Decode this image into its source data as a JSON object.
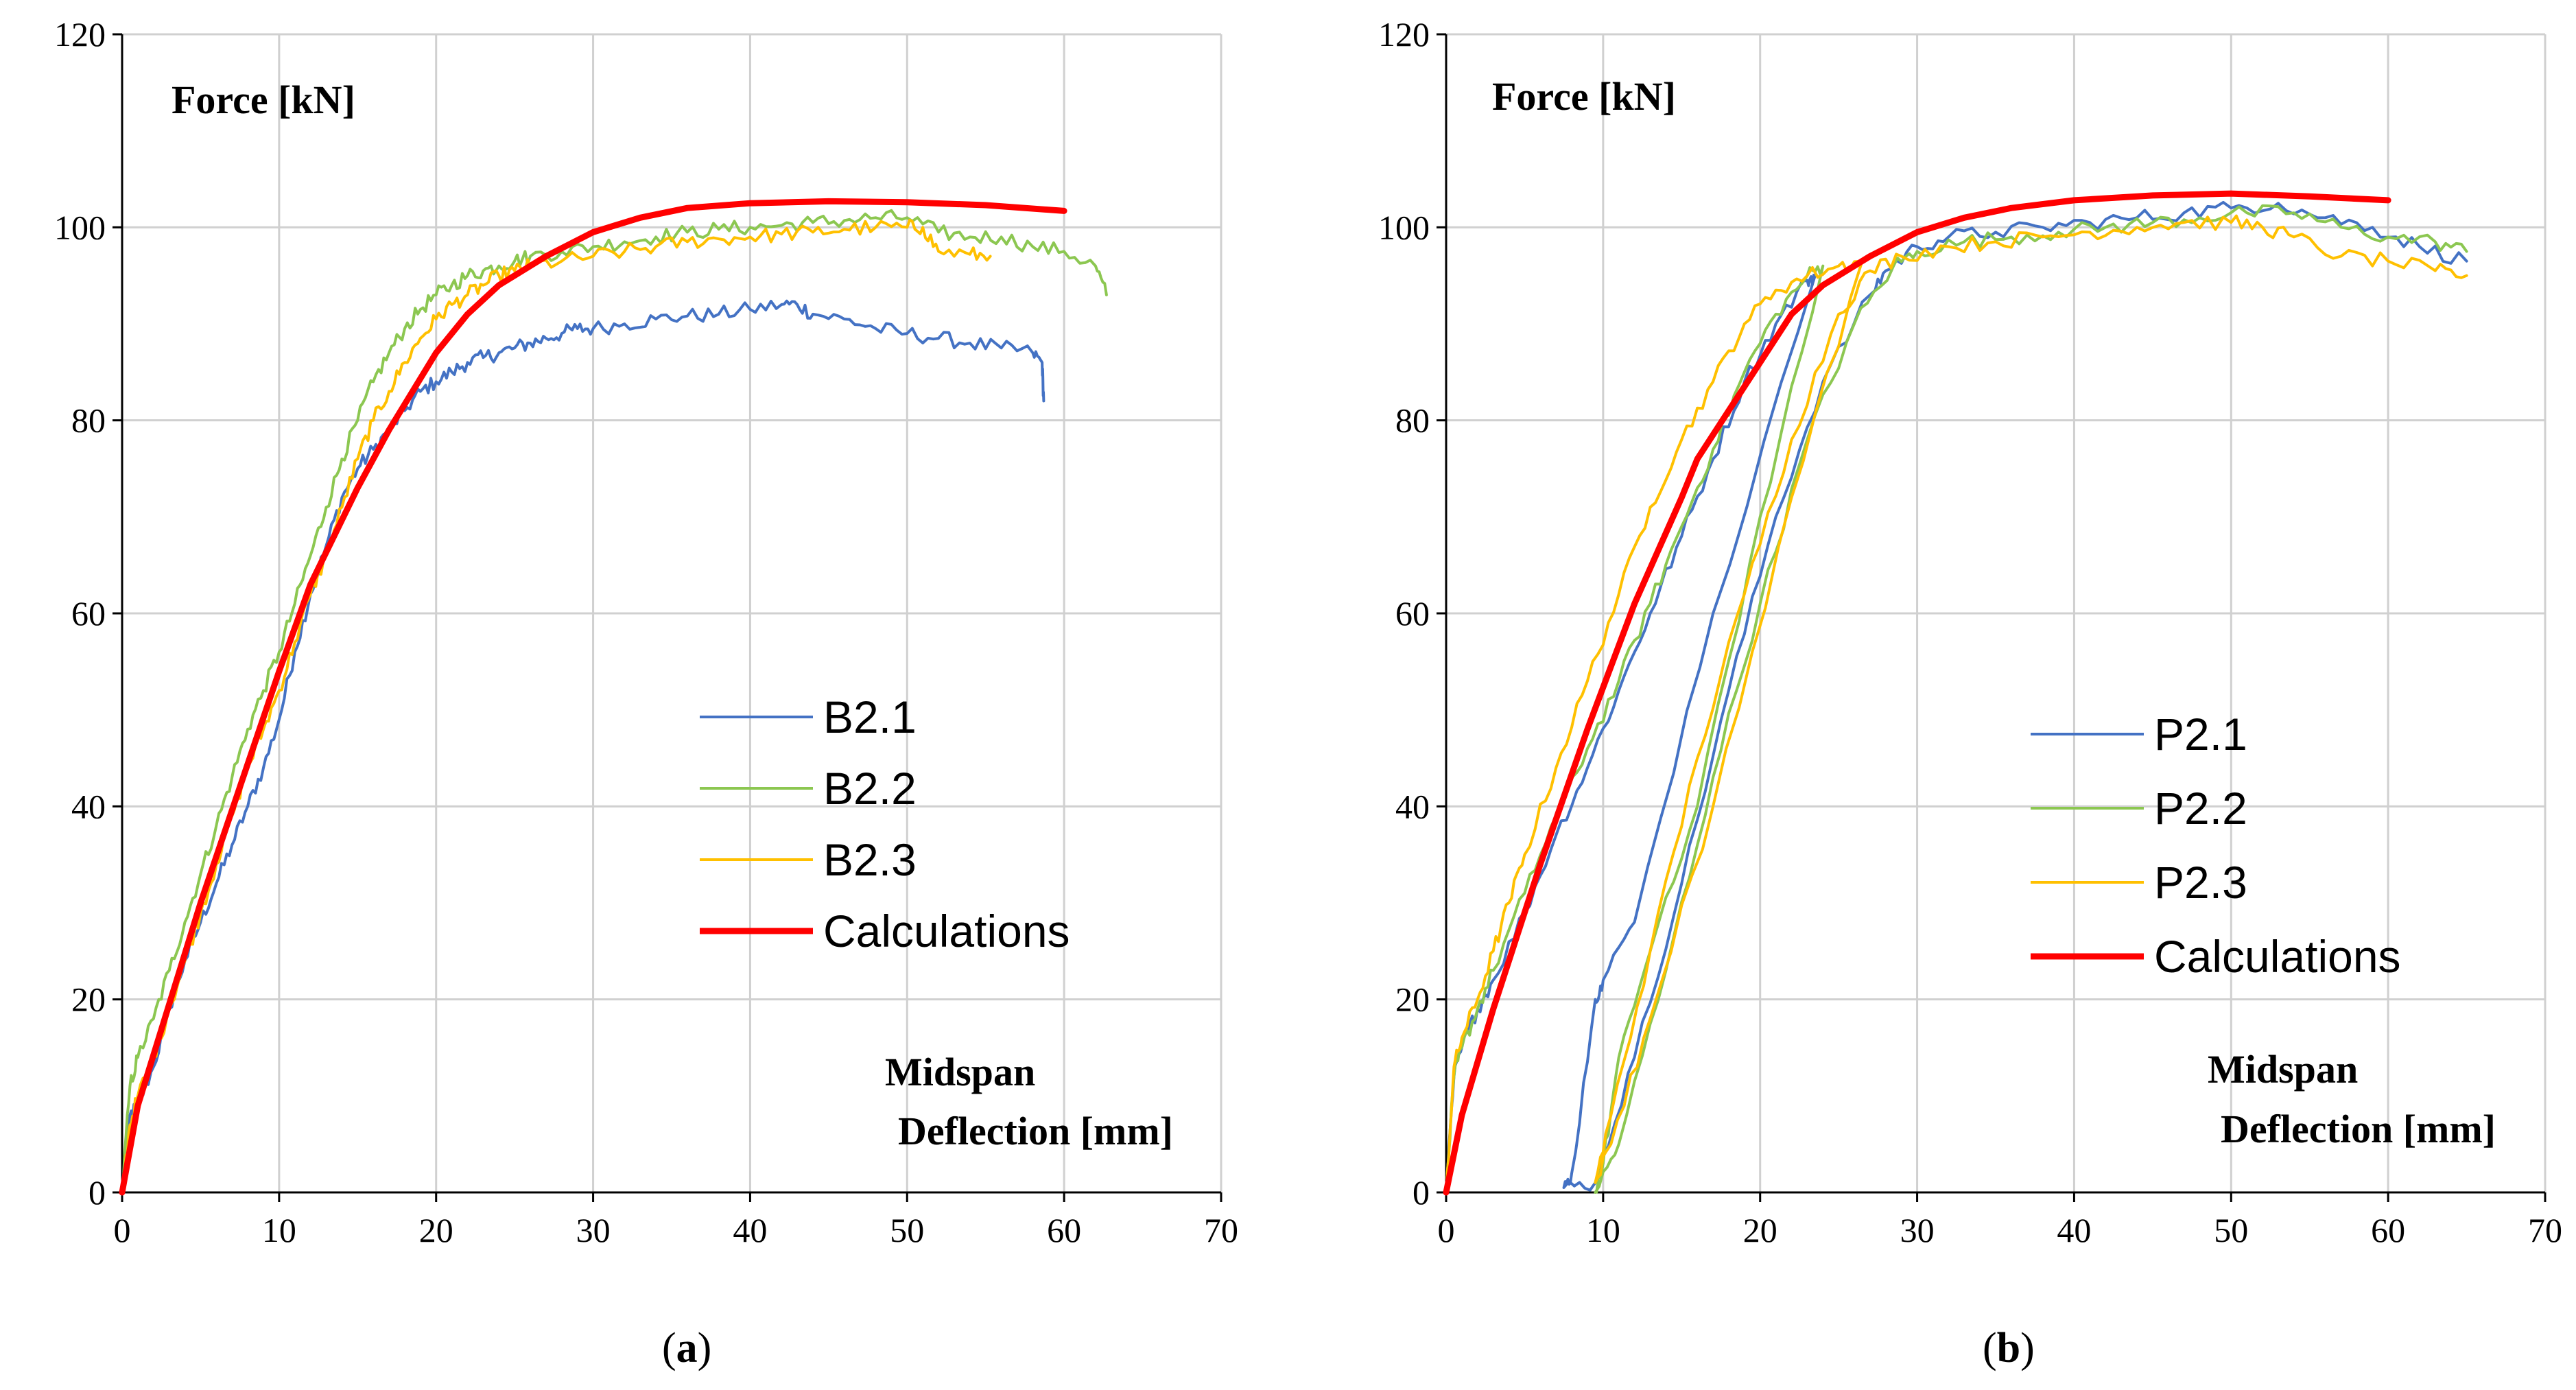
{
  "chart_data": [
    {
      "panel": "a",
      "caption": "a",
      "type": "line",
      "ylabel": "Force [kN]",
      "xlabel_line1": "Midspan",
      "xlabel_line2": "Deflection [mm]",
      "xlim": [
        0,
        70
      ],
      "ylim": [
        0,
        120
      ],
      "xticks": [
        0,
        10,
        20,
        30,
        40,
        50,
        60,
        70
      ],
      "yticks": [
        0,
        20,
        40,
        60,
        80,
        100,
        120
      ],
      "grid": true,
      "legend_placement": "center-right",
      "series": [
        {
          "name": "B2.1",
          "color": "#4472C4",
          "width": 4,
          "jitter": 0.8,
          "x": [
            0,
            0.5,
            1,
            2,
            3,
            4,
            5,
            6,
            7,
            8,
            9,
            10,
            11,
            12,
            13,
            14,
            15,
            16,
            17,
            18,
            19,
            20,
            21,
            22,
            23,
            24,
            25,
            26,
            27,
            28,
            29,
            30,
            32,
            34,
            36,
            38,
            40,
            42,
            43,
            44,
            46,
            48,
            50,
            52,
            54,
            56,
            58,
            58.6,
            58.7
          ],
          "y": [
            0,
            8,
            9,
            13,
            19,
            24,
            28,
            32,
            36,
            40,
            44,
            49,
            56,
            62,
            67,
            72,
            75,
            77,
            79,
            81,
            83,
            84,
            85,
            86,
            86.5,
            87,
            87.5,
            88,
            88.5,
            89,
            89.5,
            89.5,
            90,
            90.5,
            90.8,
            91,
            91.5,
            92,
            92,
            91,
            90.5,
            89.5,
            89,
            88.5,
            88,
            87.5,
            87,
            86,
            82
          ]
        },
        {
          "name": "B2.2",
          "color": "#8CC751",
          "width": 4,
          "jitter": 0.8,
          "x": [
            0,
            0.5,
            1,
            2,
            3,
            4,
            5,
            6,
            7,
            8,
            9,
            10,
            11,
            12,
            13,
            14,
            15,
            16,
            17,
            18,
            19,
            20,
            21,
            22,
            23,
            24,
            25,
            26,
            28,
            30,
            32,
            34,
            36,
            38,
            40,
            42,
            44,
            46,
            48,
            50,
            52,
            54,
            56,
            58,
            60,
            62,
            62.7
          ],
          "y": [
            0,
            11,
            14,
            18,
            23,
            28,
            33,
            38,
            43,
            48,
            52,
            56,
            61,
            66,
            71,
            76,
            80,
            84,
            87,
            89.5,
            91.5,
            93,
            94,
            95,
            95.5,
            96,
            96.5,
            97,
            97.5,
            98,
            98.5,
            99,
            99.5,
            99.8,
            100,
            100.2,
            100.5,
            100.7,
            101,
            101,
            99.5,
            99,
            99,
            98,
            97.5,
            96,
            93
          ]
        },
        {
          "name": "B2.3",
          "color": "#FFC000",
          "width": 4,
          "jitter": 0.8,
          "x": [
            0,
            0.5,
            1,
            2,
            3,
            4,
            5,
            6,
            7,
            8,
            9,
            10,
            11,
            12,
            13,
            14,
            15,
            16,
            17,
            18,
            19,
            20,
            21,
            22,
            23,
            24,
            25,
            26,
            28,
            30,
            32,
            34,
            36,
            38,
            40,
            42,
            44,
            46,
            48,
            50,
            51,
            52,
            54,
            55.3
          ],
          "y": [
            0,
            7,
            10,
            14,
            19,
            24,
            29,
            34,
            39,
            44,
            48,
            52,
            57,
            62,
            66,
            71,
            76,
            80,
            83,
            86,
            88.5,
            90.5,
            92,
            93,
            94,
            95,
            95.5,
            96,
            96.5,
            97,
            97.5,
            98,
            98.5,
            98.8,
            99,
            99.3,
            99.5,
            99.8,
            100,
            100,
            100,
            97.5,
            97.2,
            97
          ]
        },
        {
          "name": "Calculations",
          "color": "#FF0000",
          "width": 9,
          "jitter": 0,
          "x": [
            0,
            1,
            5,
            10,
            12,
            15,
            17,
            20,
            22,
            24,
            27,
            30,
            33,
            36,
            40,
            45,
            50,
            55,
            60
          ],
          "y": [
            0,
            9,
            30,
            54,
            63,
            73,
            79,
            87,
            91,
            94,
            97,
            99.5,
            101,
            102,
            102.5,
            102.7,
            102.6,
            102.3,
            101.7
          ]
        }
      ]
    },
    {
      "panel": "b",
      "caption": "b",
      "type": "line",
      "ylabel": "Force [kN]",
      "xlabel_line1": "Midspan",
      "xlabel_line2": "Deflection [mm]",
      "xlim": [
        0,
        70
      ],
      "ylim": [
        0,
        120
      ],
      "xticks": [
        0,
        10,
        20,
        30,
        40,
        50,
        60,
        70
      ],
      "yticks": [
        0,
        20,
        40,
        60,
        80,
        100,
        120
      ],
      "grid": true,
      "legend_placement": "center-right",
      "series": [
        {
          "name": "P2.1",
          "color": "#4472C4",
          "width": 4,
          "jitter": 0.8,
          "x": [
            0,
            0.5,
            1,
            2,
            3,
            5,
            7,
            9,
            11,
            13,
            15,
            17,
            19,
            21,
            23,
            23.5,
            17,
            12,
            10,
            9.5,
            8,
            7.5,
            9.5,
            12,
            15,
            18,
            21,
            24,
            27,
            28,
            30,
            32,
            35,
            38,
            41,
            44,
            47,
            50,
            53,
            56,
            59,
            62,
            65
          ],
          "y": [
            0,
            12,
            15,
            19,
            22,
            29,
            37,
            44,
            52,
            60,
            68,
            76,
            84,
            90,
            94.5,
            95,
            60,
            28,
            22,
            20,
            2,
            0.5,
            1,
            14,
            32,
            52,
            70,
            84,
            93,
            95.5,
            98,
            99,
            99.5,
            100,
            100.5,
            101,
            101.5,
            102,
            102.5,
            101,
            100,
            98,
            96.5
          ]
        },
        {
          "name": "P2.2",
          "color": "#8CC751",
          "width": 4,
          "jitter": 0.8,
          "x": [
            0,
            0.5,
            1,
            2,
            3,
            5,
            7,
            9,
            11,
            13,
            15,
            17,
            19,
            21,
            23,
            24,
            20,
            16,
            13,
            11,
            10,
            9.5,
            11,
            14,
            17,
            20,
            23,
            26,
            28.5,
            30,
            33,
            36,
            39,
            42,
            45,
            48,
            51,
            54,
            57,
            60,
            63,
            65
          ],
          "y": [
            0,
            12,
            15,
            19,
            23,
            31,
            39,
            46,
            53,
            61,
            69,
            77,
            85,
            91,
            95,
            96,
            70,
            40,
            25,
            14,
            3,
            0,
            5,
            23,
            43,
            61,
            78,
            90,
            96,
            97.5,
            98.5,
            99,
            99.5,
            100,
            100.5,
            101,
            101.5,
            101.5,
            100,
            99,
            98.5,
            97.5
          ]
        },
        {
          "name": "P2.3",
          "color": "#FFC000",
          "width": 4,
          "jitter": 0.8,
          "x": [
            0,
            0.5,
            1,
            2,
            3,
            4,
            5,
            7,
            9,
            11,
            13,
            15,
            17,
            19,
            21,
            23,
            25,
            26.5,
            22,
            17,
            13,
            10.5,
            9.5,
            10.5,
            13,
            16,
            19,
            22,
            25,
            27,
            29,
            32,
            35,
            38,
            41,
            44,
            47,
            50,
            52,
            54,
            57,
            60,
            63,
            65
          ],
          "y": [
            0,
            13,
            16,
            20,
            25,
            30,
            35,
            44,
            53,
            62,
            71,
            78,
            84,
            90,
            93.5,
            95,
            96,
            96.5,
            72,
            40,
            18,
            5,
            1,
            8,
            25,
            45,
            62,
            78,
            91,
            95.5,
            97,
            98,
            98.5,
            99,
            99.5,
            100,
            100.5,
            100.5,
            100,
            99,
            97,
            96.5,
            95.5,
            95
          ]
        },
        {
          "name": "Calculations",
          "color": "#FF0000",
          "width": 9,
          "jitter": 0,
          "x": [
            0,
            1,
            3,
            6,
            9,
            12,
            15,
            16,
            18,
            20,
            22,
            24,
            27,
            30,
            33,
            36,
            40,
            45,
            50,
            55,
            60
          ],
          "y": [
            0,
            8,
            19,
            34,
            48,
            61,
            72,
            76,
            81,
            86,
            91,
            94,
            97,
            99.5,
            101,
            102,
            102.8,
            103.3,
            103.5,
            103.2,
            102.8
          ]
        }
      ]
    }
  ]
}
